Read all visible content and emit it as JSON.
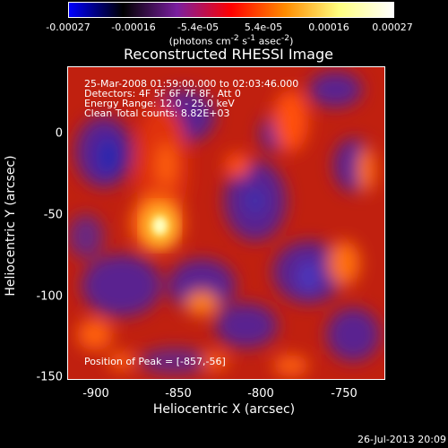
{
  "colorbar": {
    "ticks": [
      "-0.00027",
      "-0.00016",
      "-5.4e-05",
      "5.4e-05",
      "0.00016",
      "0.00027"
    ],
    "units_prefix": "(photons cm",
    "units_exp1": "-2",
    "units_mid1": " s",
    "units_exp2": "-1",
    "units_mid2": " asec",
    "units_exp3": "-2",
    "units_suffix": ")",
    "colors": [
      "#0000ff",
      "#000000",
      "#7a1fa0",
      "#ff0000",
      "#ff8c00",
      "#ffff80",
      "#ffffff"
    ]
  },
  "plot": {
    "title": "Reconstructed RHESSI Image",
    "info_line1": "25-Mar-2008 01:59:00.000 to 02:03:46.000",
    "info_line2": "Detectors: 4F 5F 6F 7F 8F, Att 0",
    "info_line3": "Energy Range: 12.0 - 25.0 keV",
    "info_line4": "Clean    Total counts: 8.82E+03",
    "peak_label": "Position of Peak = [-857,-56]",
    "x_ticks": [
      "-900",
      "-850",
      "-800",
      "-750"
    ],
    "y_ticks": [
      "0",
      "-50",
      "-100",
      "-150"
    ],
    "xlabel": "Heliocentric X (arcsec)",
    "ylabel": "Heliocentric Y (arcsec)"
  },
  "footer": {
    "date": "26-Jul-2013 20:09"
  }
}
